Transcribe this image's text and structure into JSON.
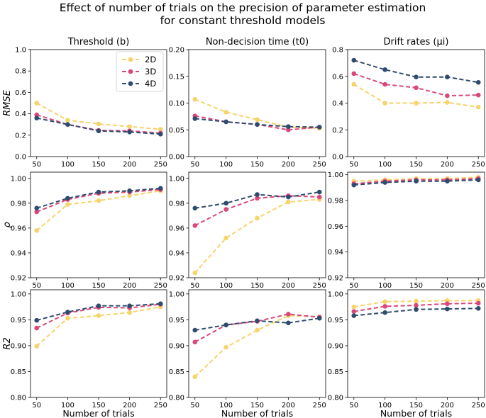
{
  "figure": {
    "title_line1": "Effect of number of trials on the precision of parameter estimation",
    "title_line2": "for constant threshold models"
  },
  "colors": {
    "2D": "#f7d36b",
    "3D": "#d9487a",
    "4D": "#2f4b6e"
  },
  "legend": {
    "entries": [
      "2D",
      "3D",
      "4D"
    ],
    "placement": "upper-right of first panel"
  },
  "chart_data": [
    {
      "type": "line",
      "row": 0,
      "col": 0,
      "title": "Threshold (b)",
      "ylabel": "RMSE",
      "xlabel": "",
      "grid": false,
      "x": [
        50,
        100,
        150,
        200,
        250
      ],
      "ylim": [
        0,
        1.0
      ],
      "yticks": [
        0.0,
        0.2,
        0.4,
        0.6,
        0.8,
        1.0
      ],
      "tick_decimals": 1,
      "series": [
        {
          "name": "2D",
          "values": [
            0.5,
            0.34,
            0.305,
            0.28,
            0.255
          ]
        },
        {
          "name": "3D",
          "values": [
            0.39,
            0.3,
            0.245,
            0.24,
            0.22
          ]
        },
        {
          "name": "4D",
          "values": [
            0.36,
            0.3,
            0.24,
            0.23,
            0.21
          ]
        }
      ]
    },
    {
      "type": "line",
      "row": 0,
      "col": 1,
      "title": "Non-decision time (t0)",
      "ylabel": "",
      "xlabel": "",
      "grid": false,
      "x": [
        50,
        100,
        150,
        200,
        250
      ],
      "ylim": [
        0,
        0.2
      ],
      "yticks": [
        0.0,
        0.05,
        0.1,
        0.15,
        0.2
      ],
      "tick_decimals": 2,
      "series": [
        {
          "name": "2D",
          "values": [
            0.107,
            0.083,
            0.069,
            0.055,
            0.053
          ]
        },
        {
          "name": "3D",
          "values": [
            0.076,
            0.065,
            0.06,
            0.05,
            0.055
          ]
        },
        {
          "name": "4D",
          "values": [
            0.071,
            0.065,
            0.06,
            0.056,
            0.055
          ]
        }
      ]
    },
    {
      "type": "line",
      "row": 0,
      "col": 2,
      "title": "Drift rates (μi)",
      "ylabel": "",
      "xlabel": "",
      "grid": false,
      "x": [
        50,
        100,
        150,
        200,
        250
      ],
      "ylim": [
        0,
        0.8
      ],
      "yticks": [
        0.0,
        0.2,
        0.4,
        0.6,
        0.8
      ],
      "tick_decimals": 1,
      "series": [
        {
          "name": "2D",
          "values": [
            0.54,
            0.4,
            0.4,
            0.405,
            0.37
          ]
        },
        {
          "name": "3D",
          "values": [
            0.62,
            0.54,
            0.515,
            0.455,
            0.46
          ]
        },
        {
          "name": "4D",
          "values": [
            0.72,
            0.65,
            0.595,
            0.595,
            0.555
          ]
        }
      ]
    },
    {
      "type": "line",
      "row": 1,
      "col": 0,
      "title": "",
      "ylabel": "ρ",
      "xlabel": "",
      "grid": false,
      "x": [
        50,
        100,
        150,
        200,
        250
      ],
      "ylim": [
        0.92,
        1.005
      ],
      "yticks": [
        0.92,
        0.94,
        0.96,
        0.98,
        1.0
      ],
      "tick_decimals": 2,
      "series": [
        {
          "name": "2D",
          "values": [
            0.958,
            0.979,
            0.982,
            0.986,
            0.99
          ]
        },
        {
          "name": "3D",
          "values": [
            0.973,
            0.983,
            0.988,
            0.989,
            0.991
          ]
        },
        {
          "name": "4D",
          "values": [
            0.976,
            0.984,
            0.989,
            0.99,
            0.992
          ]
        }
      ]
    },
    {
      "type": "line",
      "row": 1,
      "col": 1,
      "title": "",
      "ylabel": "",
      "xlabel": "",
      "grid": false,
      "x": [
        50,
        100,
        150,
        200,
        250
      ],
      "ylim": [
        0.92,
        1.005
      ],
      "yticks": [
        0.92,
        0.94,
        0.96,
        0.98,
        1.0
      ],
      "tick_decimals": 2,
      "series": [
        {
          "name": "2D",
          "values": [
            0.924,
            0.952,
            0.968,
            0.981,
            0.983
          ]
        },
        {
          "name": "3D",
          "values": [
            0.962,
            0.975,
            0.984,
            0.986,
            0.985
          ]
        },
        {
          "name": "4D",
          "values": [
            0.976,
            0.98,
            0.987,
            0.985,
            0.989
          ]
        }
      ]
    },
    {
      "type": "line",
      "row": 1,
      "col": 2,
      "title": "",
      "ylabel": "",
      "xlabel": "",
      "grid": false,
      "x": [
        50,
        100,
        150,
        200,
        250
      ],
      "ylim": [
        0.92,
        1.002
      ],
      "yticks": [
        0.92,
        0.94,
        0.96,
        0.98,
        1.0
      ],
      "tick_decimals": 2,
      "series": [
        {
          "name": "2D",
          "values": [
            0.995,
            0.996,
            0.997,
            0.997,
            0.998
          ]
        },
        {
          "name": "3D",
          "values": [
            0.993,
            0.995,
            0.996,
            0.996,
            0.997
          ]
        },
        {
          "name": "4D",
          "values": [
            0.992,
            0.994,
            0.995,
            0.995,
            0.996
          ]
        }
      ]
    },
    {
      "type": "line",
      "row": 2,
      "col": 0,
      "title": "",
      "ylabel": "R2",
      "xlabel": "Number of trials",
      "grid": false,
      "x": [
        50,
        100,
        150,
        200,
        250
      ],
      "ylim": [
        0.8,
        1.008
      ],
      "yticks": [
        0.8,
        0.85,
        0.9,
        0.95,
        1.0
      ],
      "tick_decimals": 2,
      "series": [
        {
          "name": "2D",
          "values": [
            0.899,
            0.953,
            0.958,
            0.964,
            0.975
          ]
        },
        {
          "name": "3D",
          "values": [
            0.934,
            0.963,
            0.974,
            0.973,
            0.98
          ]
        },
        {
          "name": "4D",
          "values": [
            0.949,
            0.965,
            0.977,
            0.977,
            0.981
          ]
        }
      ]
    },
    {
      "type": "line",
      "row": 2,
      "col": 1,
      "title": "",
      "ylabel": "",
      "xlabel": "Number of trials",
      "grid": false,
      "x": [
        50,
        100,
        150,
        200,
        250
      ],
      "ylim": [
        0.8,
        1.008
      ],
      "yticks": [
        0.8,
        0.85,
        0.9,
        0.95,
        1.0
      ],
      "tick_decimals": 2,
      "series": [
        {
          "name": "2D",
          "values": [
            0.84,
            0.897,
            0.93,
            0.958,
            0.956
          ]
        },
        {
          "name": "3D",
          "values": [
            0.907,
            0.94,
            0.947,
            0.961,
            0.955
          ]
        },
        {
          "name": "4D",
          "values": [
            0.93,
            0.94,
            0.948,
            0.944,
            0.953
          ]
        }
      ]
    },
    {
      "type": "line",
      "row": 2,
      "col": 2,
      "title": "",
      "ylabel": "",
      "xlabel": "Number of trials",
      "grid": false,
      "x": [
        50,
        100,
        150,
        200,
        250
      ],
      "ylim": [
        0.8,
        1.008
      ],
      "yticks": [
        0.8,
        0.85,
        0.9,
        0.95,
        1.0
      ],
      "tick_decimals": 2,
      "series": [
        {
          "name": "2D",
          "values": [
            0.975,
            0.985,
            0.986,
            0.987,
            0.987
          ]
        },
        {
          "name": "3D",
          "values": [
            0.966,
            0.976,
            0.978,
            0.981,
            0.982
          ]
        },
        {
          "name": "4D",
          "values": [
            0.958,
            0.964,
            0.97,
            0.971,
            0.972
          ]
        }
      ]
    }
  ]
}
